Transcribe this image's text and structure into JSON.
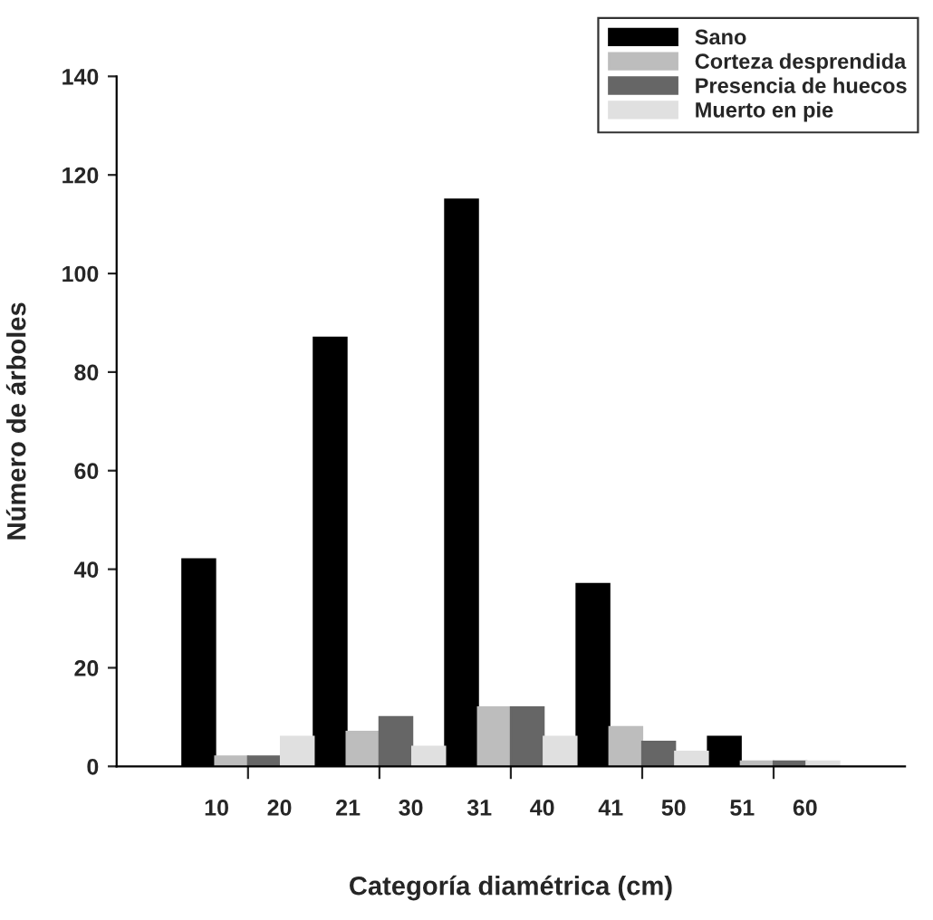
{
  "chart_data": {
    "type": "bar",
    "xlabel": "Categoría diamétrica (cm)",
    "ylabel": "Número de árboles",
    "categories": [
      "10      20",
      "21      30",
      "31      40",
      "41      50",
      "51      60"
    ],
    "series": [
      {
        "name": "Sano",
        "color": "#000000",
        "values": [
          42,
          87,
          115,
          37,
          6
        ]
      },
      {
        "name": "Corteza desprendida",
        "color": "#bdbdbd",
        "values": [
          2,
          7,
          12,
          8,
          1
        ]
      },
      {
        "name": "Presencia de huecos",
        "color": "#666666",
        "values": [
          2,
          10,
          12,
          5,
          1
        ]
      },
      {
        "name": "Muerto en pie",
        "color": "#e0e0e0",
        "values": [
          6,
          4,
          6,
          3,
          1
        ]
      }
    ],
    "ylim": [
      0,
      140
    ],
    "yticks": [
      0,
      20,
      40,
      60,
      80,
      100,
      120,
      140
    ],
    "legend": "top right"
  }
}
